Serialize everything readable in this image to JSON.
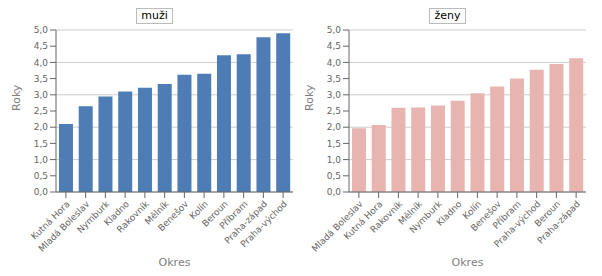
{
  "chart_data": [
    {
      "type": "bar",
      "title": "muži",
      "xlabel": "Okres",
      "ylabel": "Roky",
      "categories": [
        "Kutná Hora",
        "Mladá Boleslav",
        "Nymburk",
        "Kladno",
        "Rakovník",
        "Mělník",
        "Benešov",
        "Kolín",
        "Beroun",
        "Příbram",
        "Praha-západ",
        "Praha-východ"
      ],
      "values": [
        2.1,
        2.65,
        2.95,
        3.1,
        3.22,
        3.33,
        3.62,
        3.65,
        4.22,
        4.25,
        4.78,
        4.9
      ],
      "color": "#4E7DB5",
      "ylim": [
        0,
        5.0
      ],
      "yticks": [
        {
          "value": 0.0,
          "label": "0,0"
        },
        {
          "value": 0.5,
          "label": "0,5"
        },
        {
          "value": 1.0,
          "label": "1,0"
        },
        {
          "value": 1.5,
          "label": "1,5"
        },
        {
          "value": 2.0,
          "label": "2,0"
        },
        {
          "value": 2.5,
          "label": "2,5"
        },
        {
          "value": 3.0,
          "label": "3,0"
        },
        {
          "value": 3.5,
          "label": "3,5"
        },
        {
          "value": 4.0,
          "label": "4,0"
        },
        {
          "value": 4.5,
          "label": "4,5"
        },
        {
          "value": 5.0,
          "label": "5,0"
        }
      ],
      "grid": true
    },
    {
      "type": "bar",
      "title": "ženy",
      "xlabel": "Okres",
      "ylabel": "Roky",
      "categories": [
        "Mladá Boleslav",
        "Kutná Hora",
        "Rakovník",
        "Mělník",
        "Nymburk",
        "Kladno",
        "Kolín",
        "Benešov",
        "Příbram",
        "Praha-východ",
        "Beroun",
        "Praha-západ"
      ],
      "values": [
        1.97,
        2.07,
        2.6,
        2.61,
        2.67,
        2.82,
        3.05,
        3.26,
        3.5,
        3.77,
        3.95,
        4.13
      ],
      "color": "#E8B4B0",
      "ylim": [
        0,
        5.0
      ],
      "yticks": [
        {
          "value": 0.0,
          "label": "0,0"
        },
        {
          "value": 0.5,
          "label": "0,5"
        },
        {
          "value": 1.0,
          "label": "1,0"
        },
        {
          "value": 1.5,
          "label": "1,5"
        },
        {
          "value": 2.0,
          "label": "2,0"
        },
        {
          "value": 2.5,
          "label": "2,5"
        },
        {
          "value": 3.0,
          "label": "3,0"
        },
        {
          "value": 3.5,
          "label": "3,5"
        },
        {
          "value": 4.0,
          "label": "4,0"
        },
        {
          "value": 4.5,
          "label": "4,5"
        },
        {
          "value": 5.0,
          "label": "5,0"
        }
      ],
      "grid": true
    }
  ]
}
